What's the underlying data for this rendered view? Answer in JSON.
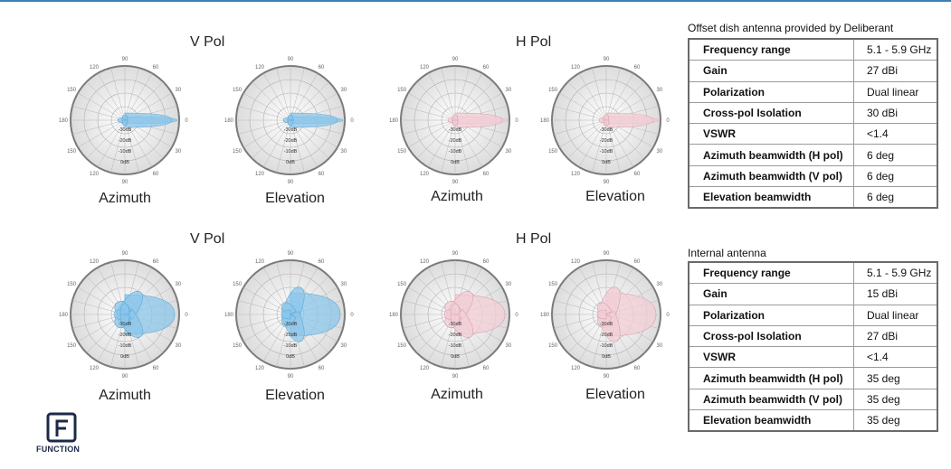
{
  "sections": [
    {
      "titles": [
        "V Pol",
        "H Pol"
      ],
      "plots": [
        {
          "label": "Azimuth",
          "pol": "V",
          "ticks": [
            "90",
            "60",
            "30",
            "0",
            "30",
            "60",
            "90",
            "120",
            "150",
            "180",
            "150",
            "120"
          ],
          "rings": [
            "-30dB",
            "-20dB",
            "-10dB",
            "0dB"
          ]
        },
        {
          "label": "Elevation",
          "pol": "V",
          "ticks": [
            "90",
            "60",
            "30",
            "0",
            "30",
            "60",
            "90",
            "120",
            "150",
            "180",
            "150",
            "120"
          ],
          "rings": [
            "-30dB",
            "-20dB",
            "-10dB",
            "0dB"
          ]
        },
        {
          "label": "Azimuth",
          "pol": "H",
          "ticks": [
            "90",
            "60",
            "30",
            "0",
            "30",
            "60",
            "90",
            "120",
            "150",
            "180",
            "150",
            "120"
          ],
          "rings": [
            "-30dB",
            "-20dB",
            "-10dB",
            "0dB"
          ]
        },
        {
          "label": "Elevation",
          "pol": "H",
          "ticks": [
            "90",
            "60",
            "30",
            "0",
            "30",
            "60",
            "90",
            "120",
            "150",
            "180",
            "150",
            "120"
          ],
          "rings": [
            "-30dB",
            "-20dB",
            "-10dB",
            "0dB"
          ]
        }
      ]
    },
    {
      "titles": [
        "V Pol",
        "H Pol"
      ],
      "plots": [
        {
          "label": "Azimuth",
          "pol": "V",
          "ticks": [
            "90",
            "60",
            "30",
            "0",
            "30",
            "60",
            "90",
            "120",
            "150",
            "180",
            "150",
            "120"
          ],
          "rings": [
            "-30dB",
            "-20dB",
            "-10dB",
            "0dB"
          ]
        },
        {
          "label": "Elevation",
          "pol": "V",
          "ticks": [
            "90",
            "60",
            "30",
            "0",
            "30",
            "60",
            "90",
            "120",
            "150",
            "180",
            "150",
            "120"
          ],
          "rings": [
            "-30dB",
            "-20dB",
            "-10dB",
            "0dB"
          ]
        },
        {
          "label": "Azimuth",
          "pol": "H",
          "ticks": [
            "90",
            "60",
            "30",
            "0",
            "30",
            "60",
            "90",
            "120",
            "150",
            "180",
            "150",
            "120"
          ],
          "rings": [
            "-30dB",
            "-20dB",
            "-10dB",
            "0dB"
          ]
        },
        {
          "label": "Elevation",
          "pol": "H",
          "ticks": [
            "90",
            "60",
            "30",
            "0",
            "30",
            "60",
            "90",
            "120",
            "150",
            "180",
            "150",
            "120"
          ],
          "rings": [
            "-30dB",
            "-20dB",
            "-10dB",
            "0dB"
          ]
        }
      ]
    }
  ],
  "tables": [
    {
      "title": "Offset dish antenna provided by Deliberant",
      "rows": [
        {
          "key": "Frequency range",
          "value": "5.1 - 5.9 GHz"
        },
        {
          "key": "Gain",
          "value": "27 dBi"
        },
        {
          "key": "Polarization",
          "value": "Dual linear"
        },
        {
          "key": "Cross-pol Isolation",
          "value": "30 dBi"
        },
        {
          "key": "VSWR",
          "value": "<1.4"
        },
        {
          "key": "Azimuth beamwidth (H pol)",
          "value": "6 deg"
        },
        {
          "key": "Azimuth beamwidth (V pol)",
          "value": "6 deg"
        },
        {
          "key": "Elevation beamwidth",
          "value": "6 deg"
        }
      ]
    },
    {
      "title": "Internal antenna",
      "rows": [
        {
          "key": "Frequency range",
          "value": "5.1 - 5.9 GHz"
        },
        {
          "key": "Gain",
          "value": "15 dBi"
        },
        {
          "key": "Polarization",
          "value": "Dual linear"
        },
        {
          "key": "Cross-pol Isolation",
          "value": "27 dBi"
        },
        {
          "key": "VSWR",
          "value": "<1.4"
        },
        {
          "key": "Azimuth beamwidth (H pol)",
          "value": "35 deg"
        },
        {
          "key": "Azimuth beamwidth (V pol)",
          "value": "35 deg"
        },
        {
          "key": "Elevation beamwidth",
          "value": "35 deg"
        }
      ]
    }
  ],
  "logo": {
    "text": "FUNCTION",
    "icon": "function-logo-icon"
  },
  "colors": {
    "v_pol": "#8cc6ea",
    "h_pol": "#f2cdd6",
    "accent": "#3d7fb0"
  }
}
